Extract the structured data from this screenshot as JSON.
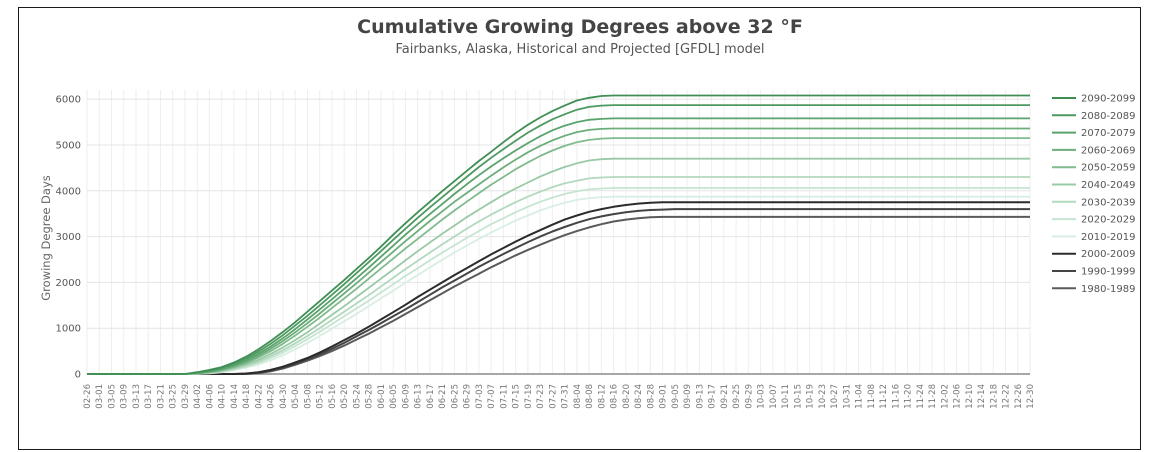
{
  "chart_data": {
    "type": "line",
    "title": "Cumulative Growing Degrees above 32 °F",
    "subtitle": "Fairbanks, Alaska, Historical and Projected [GFDL] model",
    "xlabel": "",
    "ylabel": "Growing Degree Days",
    "ylim": [
      0,
      6000
    ],
    "yticks": [
      0,
      1000,
      2000,
      3000,
      4000,
      5000,
      6000
    ],
    "grid": true,
    "legend_position": "right",
    "x": [
      "02-26",
      "03-01",
      "03-05",
      "03-09",
      "03-13",
      "03-17",
      "03-21",
      "03-25",
      "03-29",
      "04-02",
      "04-06",
      "04-10",
      "04-14",
      "04-18",
      "04-22",
      "04-26",
      "04-30",
      "05-04",
      "05-08",
      "05-12",
      "05-16",
      "05-20",
      "05-24",
      "05-28",
      "06-01",
      "06-05",
      "06-09",
      "06-13",
      "06-17",
      "06-21",
      "06-25",
      "06-29",
      "07-03",
      "07-07",
      "07-11",
      "07-15",
      "07-19",
      "07-23",
      "07-27",
      "07-31",
      "08-04",
      "08-08",
      "08-12",
      "08-16",
      "08-20",
      "08-24",
      "08-28",
      "09-01",
      "09-05",
      "09-09",
      "09-13",
      "09-17",
      "09-21",
      "09-25",
      "09-29",
      "10-03",
      "10-07",
      "10-11",
      "10-15",
      "10-19",
      "10-23",
      "10-27",
      "10-31",
      "11-04",
      "11-08",
      "11-12",
      "11-16",
      "11-20",
      "11-24",
      "11-28",
      "12-02",
      "12-06",
      "12-10",
      "12-14",
      "12-18",
      "12-22",
      "12-26",
      "12-30"
    ],
    "series": [
      {
        "name": "2090-2099",
        "color": "#3f8f54",
        "width": 1.8,
        "values": [
          0,
          0,
          0,
          0,
          0,
          0,
          0,
          0,
          0,
          40,
          90,
          150,
          250,
          380,
          540,
          720,
          920,
          1130,
          1360,
          1590,
          1820,
          2050,
          2290,
          2530,
          2780,
          3040,
          3290,
          3530,
          3760,
          3990,
          4210,
          4430,
          4650,
          4850,
          5060,
          5260,
          5440,
          5600,
          5740,
          5860,
          5970,
          6030,
          6070,
          6080,
          6080,
          6080,
          6080,
          6080,
          6080,
          6080,
          6080,
          6080,
          6080,
          6080,
          6080,
          6080,
          6080,
          6080,
          6080,
          6080,
          6080,
          6080,
          6080,
          6080,
          6080,
          6080,
          6080,
          6080,
          6080,
          6080,
          6080,
          6080,
          6080,
          6080,
          6080,
          6080,
          6080,
          6080
        ]
      },
      {
        "name": "2080-2089",
        "color": "#4d9961",
        "width": 1.8,
        "values": [
          0,
          0,
          0,
          0,
          0,
          0,
          0,
          0,
          0,
          30,
          70,
          130,
          220,
          340,
          490,
          660,
          850,
          1060,
          1270,
          1500,
          1730,
          1960,
          2200,
          2440,
          2680,
          2930,
          3170,
          3410,
          3640,
          3860,
          4080,
          4300,
          4520,
          4720,
          4910,
          5090,
          5270,
          5420,
          5560,
          5670,
          5770,
          5830,
          5860,
          5870,
          5870,
          5870,
          5870,
          5870,
          5870,
          5870,
          5870,
          5870,
          5870,
          5870,
          5870,
          5870,
          5870,
          5870,
          5870,
          5870,
          5870,
          5870,
          5870,
          5870,
          5870,
          5870,
          5870,
          5870,
          5870,
          5870,
          5870,
          5870,
          5870,
          5870,
          5870,
          5870,
          5870,
          5870
        ]
      },
      {
        "name": "2070-2079",
        "color": "#5aa36c",
        "width": 1.8,
        "values": [
          0,
          0,
          0,
          0,
          0,
          0,
          0,
          0,
          0,
          25,
          60,
          110,
          190,
          300,
          440,
          600,
          780,
          980,
          1190,
          1410,
          1630,
          1860,
          2090,
          2320,
          2560,
          2800,
          3040,
          3270,
          3490,
          3710,
          3930,
          4140,
          4340,
          4530,
          4710,
          4880,
          5040,
          5190,
          5320,
          5420,
          5500,
          5550,
          5570,
          5580,
          5580,
          5580,
          5580,
          5580,
          5580,
          5580,
          5580,
          5580,
          5580,
          5580,
          5580,
          5580,
          5580,
          5580,
          5580,
          5580,
          5580,
          5580,
          5580,
          5580,
          5580,
          5580,
          5580,
          5580,
          5580,
          5580,
          5580,
          5580,
          5580,
          5580,
          5580,
          5580,
          5580,
          5580
        ]
      },
      {
        "name": "2060-2069",
        "color": "#6cae7b",
        "width": 1.8,
        "values": [
          0,
          0,
          0,
          0,
          0,
          0,
          0,
          0,
          0,
          20,
          50,
          100,
          170,
          270,
          400,
          550,
          720,
          910,
          1110,
          1320,
          1540,
          1760,
          1980,
          2210,
          2440,
          2670,
          2900,
          3120,
          3340,
          3550,
          3760,
          3950,
          4140,
          4330,
          4510,
          4680,
          4840,
          4980,
          5100,
          5200,
          5280,
          5330,
          5350,
          5360,
          5360,
          5360,
          5360,
          5360,
          5360,
          5360,
          5360,
          5360,
          5360,
          5360,
          5360,
          5360,
          5360,
          5360,
          5360,
          5360,
          5360,
          5360,
          5360,
          5360,
          5360,
          5360,
          5360,
          5360,
          5360,
          5360,
          5360,
          5360,
          5360,
          5360,
          5360,
          5360,
          5360,
          5360
        ]
      },
      {
        "name": "2050-2059",
        "color": "#80ba8d",
        "width": 1.8,
        "values": [
          0,
          0,
          0,
          0,
          0,
          0,
          0,
          0,
          0,
          15,
          40,
          85,
          150,
          240,
          360,
          500,
          660,
          840,
          1030,
          1230,
          1440,
          1650,
          1860,
          2080,
          2300,
          2520,
          2740,
          2950,
          3160,
          3370,
          3570,
          3760,
          3950,
          4130,
          4300,
          4470,
          4620,
          4760,
          4880,
          4980,
          5060,
          5110,
          5140,
          5150,
          5150,
          5150,
          5150,
          5150,
          5150,
          5150,
          5150,
          5150,
          5150,
          5150,
          5150,
          5150,
          5150,
          5150,
          5150,
          5150,
          5150,
          5150,
          5150,
          5150,
          5150,
          5150,
          5150,
          5150,
          5150,
          5150,
          5150,
          5150,
          5150,
          5150,
          5150,
          5150,
          5150,
          5150
        ]
      },
      {
        "name": "2040-2049",
        "color": "#9ac9a6",
        "width": 1.8,
        "values": [
          0,
          0,
          0,
          0,
          0,
          0,
          0,
          0,
          0,
          10,
          30,
          70,
          130,
          210,
          310,
          440,
          580,
          740,
          910,
          1100,
          1290,
          1480,
          1680,
          1880,
          2080,
          2280,
          2480,
          2680,
          2870,
          3060,
          3240,
          3420,
          3590,
          3750,
          3910,
          4050,
          4180,
          4310,
          4420,
          4520,
          4600,
          4660,
          4690,
          4700,
          4700,
          4700,
          4700,
          4700,
          4700,
          4700,
          4700,
          4700,
          4700,
          4700,
          4700,
          4700,
          4700,
          4700,
          4700,
          4700,
          4700,
          4700,
          4700,
          4700,
          4700,
          4700,
          4700,
          4700,
          4700,
          4700,
          4700,
          4700,
          4700,
          4700,
          4700,
          4700,
          4700,
          4700
        ]
      },
      {
        "name": "2030-2039",
        "color": "#b2d8bd",
        "width": 1.8,
        "values": [
          0,
          0,
          0,
          0,
          0,
          0,
          0,
          0,
          0,
          8,
          25,
          60,
          110,
          180,
          270,
          390,
          520,
          670,
          830,
          1000,
          1180,
          1360,
          1540,
          1720,
          1910,
          2100,
          2290,
          2470,
          2650,
          2830,
          3000,
          3170,
          3330,
          3480,
          3620,
          3750,
          3870,
          3980,
          4080,
          4160,
          4220,
          4270,
          4290,
          4300,
          4300,
          4300,
          4300,
          4300,
          4300,
          4300,
          4300,
          4300,
          4300,
          4300,
          4300,
          4300,
          4300,
          4300,
          4300,
          4300,
          4300,
          4300,
          4300,
          4300,
          4300,
          4300,
          4300,
          4300,
          4300,
          4300,
          4300,
          4300,
          4300,
          4300,
          4300,
          4300,
          4300,
          4300
        ]
      },
      {
        "name": "2020-2029",
        "color": "#c6e4d2",
        "width": 1.8,
        "values": [
          0,
          0,
          0,
          0,
          0,
          0,
          0,
          0,
          0,
          5,
          20,
          50,
          95,
          160,
          240,
          350,
          470,
          610,
          760,
          920,
          1090,
          1260,
          1430,
          1600,
          1780,
          1960,
          2140,
          2310,
          2480,
          2650,
          2810,
          2970,
          3120,
          3270,
          3400,
          3530,
          3650,
          3760,
          3850,
          3930,
          3990,
          4030,
          4050,
          4060,
          4060,
          4060,
          4060,
          4060,
          4060,
          4060,
          4060,
          4060,
          4060,
          4060,
          4060,
          4060,
          4060,
          4060,
          4060,
          4060,
          4060,
          4060,
          4060,
          4060,
          4060,
          4060,
          4060,
          4060,
          4060,
          4060,
          4060,
          4060,
          4060,
          4060,
          4060,
          4060,
          4060,
          4060
        ]
      },
      {
        "name": "2010-2019",
        "color": "#d9eee3",
        "width": 1.8,
        "values": [
          0,
          0,
          0,
          0,
          0,
          0,
          0,
          0,
          0,
          4,
          15,
          40,
          80,
          140,
          210,
          300,
          410,
          540,
          680,
          830,
          990,
          1150,
          1310,
          1480,
          1650,
          1820,
          1990,
          2160,
          2330,
          2490,
          2650,
          2800,
          2950,
          3090,
          3220,
          3350,
          3460,
          3570,
          3660,
          3740,
          3800,
          3840,
          3860,
          3870,
          3870,
          3870,
          3870,
          3870,
          3870,
          3870,
          3870,
          3870,
          3870,
          3870,
          3870,
          3870,
          3870,
          3870,
          3870,
          3870,
          3870,
          3870,
          3870,
          3870,
          3870,
          3870,
          3870,
          3870,
          3870,
          3870,
          3870,
          3870,
          3870,
          3870,
          3870,
          3870,
          3870,
          3870
        ]
      },
      {
        "name": "2000-2009",
        "color": "#2b2b2b",
        "width": 2,
        "values": [
          0,
          0,
          0,
          0,
          0,
          0,
          0,
          0,
          0,
          0,
          0,
          0,
          0,
          10,
          40,
          90,
          160,
          250,
          350,
          470,
          600,
          740,
          880,
          1030,
          1190,
          1350,
          1510,
          1680,
          1840,
          2000,
          2160,
          2310,
          2460,
          2610,
          2750,
          2890,
          3020,
          3140,
          3260,
          3370,
          3460,
          3540,
          3600,
          3650,
          3690,
          3720,
          3740,
          3750,
          3750,
          3750,
          3750,
          3750,
          3750,
          3750,
          3750,
          3750,
          3750,
          3750,
          3750,
          3750,
          3750,
          3750,
          3750,
          3750,
          3750,
          3750,
          3750,
          3750,
          3750,
          3750,
          3750,
          3750,
          3750,
          3750,
          3750,
          3750,
          3750,
          3750
        ]
      },
      {
        "name": "1990-1999",
        "color": "#444444",
        "width": 2,
        "values": [
          0,
          0,
          0,
          0,
          0,
          0,
          0,
          0,
          0,
          0,
          0,
          0,
          0,
          5,
          30,
          75,
          140,
          220,
          320,
          430,
          550,
          680,
          820,
          960,
          1110,
          1260,
          1410,
          1570,
          1730,
          1890,
          2040,
          2190,
          2340,
          2480,
          2620,
          2750,
          2880,
          3000,
          3110,
          3210,
          3300,
          3380,
          3440,
          3490,
          3530,
          3560,
          3580,
          3590,
          3600,
          3600,
          3600,
          3600,
          3600,
          3600,
          3600,
          3600,
          3600,
          3600,
          3600,
          3600,
          3600,
          3600,
          3600,
          3600,
          3600,
          3600,
          3600,
          3600,
          3600,
          3600,
          3600,
          3600,
          3600,
          3600,
          3600,
          3600,
          3600,
          3600
        ]
      },
      {
        "name": "1980-1989",
        "color": "#5a5a5a",
        "width": 2,
        "values": [
          0,
          0,
          0,
          0,
          0,
          0,
          0,
          0,
          0,
          0,
          0,
          0,
          0,
          0,
          20,
          60,
          120,
          200,
          290,
          390,
          500,
          620,
          750,
          880,
          1020,
          1160,
          1310,
          1460,
          1610,
          1760,
          1910,
          2050,
          2190,
          2330,
          2460,
          2590,
          2710,
          2820,
          2930,
          3030,
          3120,
          3200,
          3270,
          3330,
          3370,
          3400,
          3420,
          3430,
          3430,
          3430,
          3430,
          3430,
          3430,
          3430,
          3430,
          3430,
          3430,
          3430,
          3430,
          3430,
          3430,
          3430,
          3430,
          3430,
          3430,
          3430,
          3430,
          3430,
          3430,
          3430,
          3430,
          3430,
          3430,
          3430,
          3430,
          3430,
          3430,
          3430
        ]
      }
    ]
  }
}
